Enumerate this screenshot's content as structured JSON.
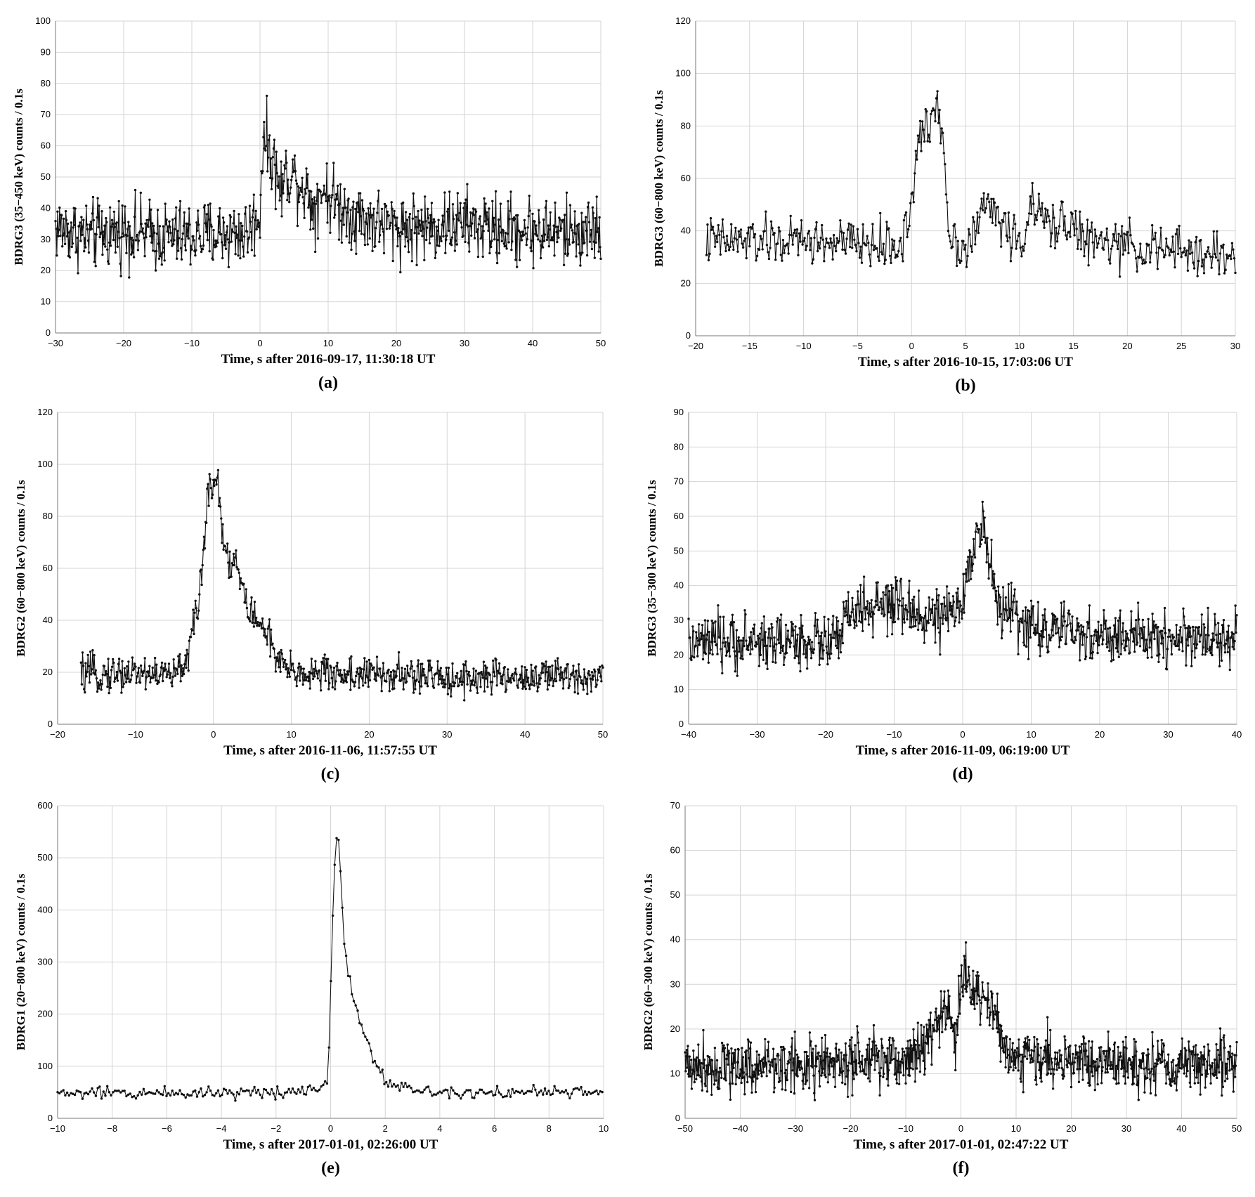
{
  "chart_data": [
    {
      "type": "line",
      "panel_label": "(a)",
      "xlabel": "Time, s after 2016-09-17, 11:30:18 UT",
      "ylabel": "BDRG3 (35−450 keV) counts / 0.1s",
      "xlim": [
        -30,
        50
      ],
      "ylim": [
        0,
        100
      ],
      "xticks": [
        -30,
        -20,
        -10,
        0,
        10,
        20,
        30,
        40,
        50
      ],
      "xtick_labels": [
        "−30",
        "−20",
        "−10",
        "0",
        "10",
        "20",
        "30",
        "40",
        "50"
      ],
      "yticks": [
        0,
        10,
        20,
        30,
        40,
        50,
        60,
        70,
        80,
        90,
        100
      ],
      "ytick_labels": [
        "0",
        "10",
        "20",
        "30",
        "40",
        "50",
        "60",
        "70",
        "80",
        "90",
        "100"
      ],
      "grid": true,
      "markers": "points",
      "x": [
        -30,
        -25,
        -20,
        -15,
        -10,
        -5,
        -2,
        0,
        0.5,
        1,
        2,
        3,
        4,
        5,
        6,
        7,
        8,
        9,
        10,
        11,
        12,
        14,
        16,
        18,
        20,
        25,
        30,
        35,
        40,
        45,
        50
      ],
      "y": [
        34,
        31,
        33,
        31,
        31,
        32,
        32,
        38,
        66,
        60,
        55,
        45,
        52,
        50,
        48,
        45,
        40,
        47,
        44,
        42,
        40,
        38,
        36,
        35,
        34,
        34,
        35,
        33,
        33,
        32,
        33
      ],
      "noise": 5.5
    },
    {
      "type": "line",
      "panel_label": "(b)",
      "xlabel": "Time, s  after 2016-10-15, 17:03:06 UT",
      "ylabel": "BDRG3 (60−800 keV) counts / 0.1s",
      "xlim": [
        -20,
        30
      ],
      "ylim": [
        0,
        120
      ],
      "xticks": [
        -20,
        -15,
        -10,
        -5,
        0,
        5,
        10,
        15,
        20,
        25,
        30
      ],
      "xtick_labels": [
        "−20",
        "−15",
        "−10",
        "−5",
        "0",
        "5",
        "10",
        "15",
        "20",
        "25",
        "30"
      ],
      "yticks": [
        0,
        20,
        40,
        60,
        80,
        100,
        120
      ],
      "ytick_labels": [
        "0",
        "20",
        "40",
        "60",
        "80",
        "100",
        "120"
      ],
      "grid": true,
      "markers": "points",
      "x": [
        -19,
        -15,
        -10,
        -5,
        -1,
        0,
        0.5,
        1,
        1.5,
        2,
        2.5,
        3,
        3.5,
        4,
        5,
        6,
        7,
        8,
        9,
        10,
        11,
        12,
        13,
        14,
        15,
        16,
        20,
        25,
        30
      ],
      "y": [
        36,
        36,
        36,
        35,
        34,
        50,
        68,
        80,
        76,
        86,
        90,
        70,
        40,
        36,
        34,
        40,
        52,
        45,
        40,
        34,
        48,
        46,
        40,
        46,
        42,
        36,
        34,
        32,
        30
      ],
      "noise": 4.5
    },
    {
      "type": "line",
      "panel_label": "(c)",
      "xlabel": "Time, s  after 2016-11-06, 11:57:55 UT",
      "ylabel": "BDRG2 (60−800 keV) counts / 0.1s",
      "xlim": [
        -20,
        50
      ],
      "ylim": [
        0,
        120
      ],
      "xticks": [
        -20,
        -10,
        0,
        10,
        20,
        30,
        40,
        50
      ],
      "xtick_labels": [
        "−20",
        "−10",
        "0",
        "10",
        "20",
        "30",
        "40",
        "50"
      ],
      "yticks": [
        0,
        20,
        40,
        60,
        80,
        100,
        120
      ],
      "ytick_labels": [
        "0",
        "20",
        "40",
        "60",
        "80",
        "100",
        "120"
      ],
      "grid": true,
      "markers": "points",
      "x": [
        -17,
        -10,
        -5,
        -4,
        -3,
        -2,
        -1,
        -0.5,
        0,
        0.5,
        1,
        2,
        3,
        4,
        5,
        6,
        7,
        8,
        10,
        20,
        30,
        40,
        50
      ],
      "y": [
        19,
        20,
        19,
        22,
        30,
        45,
        75,
        95,
        92,
        96,
        78,
        62,
        62,
        48,
        42,
        38,
        36,
        24,
        20,
        19,
        18,
        18,
        19
      ],
      "noise": 3.5
    },
    {
      "type": "line",
      "panel_label": "(d)",
      "xlabel": "Time, s  after 2016-11-09, 06:19:00 UT",
      "ylabel": "BDRG3 (35−300 keV) counts / 0.1s",
      "xlim": [
        -40,
        40
      ],
      "ylim": [
        0,
        90
      ],
      "xticks": [
        -40,
        -30,
        -20,
        -10,
        0,
        10,
        20,
        30,
        40
      ],
      "xtick_labels": [
        "−40",
        "−30",
        "−20",
        "−10",
        "0",
        "10",
        "20",
        "30",
        "40"
      ],
      "yticks": [
        0,
        10,
        20,
        30,
        40,
        50,
        60,
        70,
        80,
        90
      ],
      "ytick_labels": [
        "0",
        "10",
        "20",
        "30",
        "40",
        "50",
        "60",
        "70",
        "80",
        "90"
      ],
      "grid": true,
      "markers": "points",
      "x": [
        -40,
        -30,
        -20,
        -18,
        -17,
        -15,
        -10,
        -5,
        -2,
        0,
        1,
        2,
        3,
        4,
        5,
        7,
        10,
        20,
        30,
        40
      ],
      "y": [
        23,
        24,
        24,
        24,
        31,
        33,
        34,
        31,
        31,
        34,
        48,
        56,
        58,
        45,
        35,
        32,
        28,
        25,
        25,
        25
      ],
      "noise": 4.0
    },
    {
      "type": "line",
      "panel_label": "(e)",
      "xlabel": "Time, s after 2017-01-01,   02:26:00 UT",
      "ylabel": "BDRG1 (20−800 keV) counts / 0.1s",
      "xlim": [
        -10,
        10
      ],
      "ylim": [
        0,
        600
      ],
      "xticks": [
        -10,
        -8,
        -6,
        -4,
        -2,
        0,
        2,
        4,
        6,
        8,
        10
      ],
      "xtick_labels": [
        "−10",
        "−8",
        "−6",
        "−4",
        "−2",
        "0",
        "2",
        "4",
        "6",
        "8",
        "10"
      ],
      "yticks": [
        0,
        100,
        200,
        300,
        400,
        500,
        600
      ],
      "ytick_labels": [
        "0",
        "100",
        "200",
        "300",
        "400",
        "500",
        "600"
      ],
      "grid": true,
      "markers": "points",
      "x": [
        -10,
        -8,
        -6,
        -4,
        -2,
        -1,
        -0.5,
        -0.1,
        0,
        0.1,
        0.2,
        0.3,
        0.4,
        0.5,
        0.6,
        0.7,
        0.8,
        1.0,
        1.2,
        1.4,
        1.6,
        1.8,
        2.0,
        2.5,
        3,
        4,
        6,
        8,
        10
      ],
      "y": [
        48,
        48,
        49,
        50,
        50,
        55,
        60,
        70,
        245,
        440,
        530,
        535,
        430,
        335,
        285,
        275,
        240,
        195,
        170,
        145,
        110,
        95,
        75,
        60,
        55,
        52,
        50,
        50,
        50
      ],
      "noise": 6
    },
    {
      "type": "line",
      "panel_label": "(f)",
      "xlabel": "Time, s  after  2017-01-01,   02:47:22 UT",
      "ylabel": "BDRG2 (60−300 keV) counts / 0.1s",
      "xlim": [
        -50,
        50
      ],
      "ylim": [
        0,
        70
      ],
      "xticks": [
        -50,
        -40,
        -30,
        -20,
        -10,
        0,
        10,
        20,
        30,
        40,
        50
      ],
      "xtick_labels": [
        "−50",
        "−40",
        "−30",
        "−20",
        "−10",
        "0",
        "10",
        "20",
        "30",
        "40",
        "50"
      ],
      "yticks": [
        0,
        10,
        20,
        30,
        40,
        50,
        60,
        70
      ],
      "ytick_labels": [
        "0",
        "10",
        "20",
        "30",
        "40",
        "50",
        "60",
        "70"
      ],
      "grid": true,
      "markers": "points",
      "x": [
        -50,
        -40,
        -30,
        -20,
        -10,
        -7,
        -5,
        -3,
        -2,
        -1,
        0,
        1,
        2,
        3,
        4,
        5,
        6,
        7,
        8,
        10,
        20,
        30,
        40,
        50
      ],
      "y": [
        12,
        12,
        12,
        12,
        13,
        16,
        20,
        24,
        23,
        17,
        30,
        32,
        27,
        30,
        27,
        26,
        24,
        18,
        16,
        14,
        13,
        12,
        12,
        12
      ],
      "noise": 3.2
    }
  ]
}
